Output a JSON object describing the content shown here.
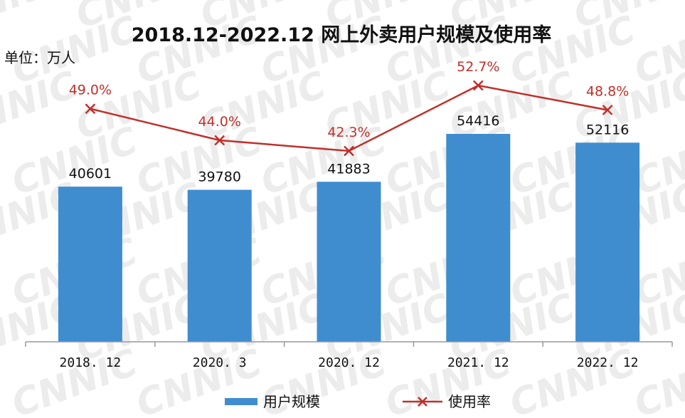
{
  "chart_data": {
    "type": "bar",
    "title": "2018.12-2022.12 网上外卖用户规模及使用率",
    "unit_label": "单位：万人",
    "categories": [
      "2018. 12",
      "2020. 3",
      "2020. 12",
      "2021. 12",
      "2022. 12"
    ],
    "series": [
      {
        "name": "用户规模",
        "type": "bar",
        "values": [
          40601,
          39780,
          41883,
          54416,
          52116
        ],
        "labels": [
          "40601",
          "39780",
          "41883",
          "54416",
          "52116"
        ],
        "color": "#3f8dcf"
      },
      {
        "name": "使用率",
        "type": "line",
        "marker": "x",
        "values": [
          49.0,
          44.0,
          42.3,
          52.7,
          48.8
        ],
        "labels": [
          "49.0%",
          "44.0%",
          "42.3%",
          "52.7%",
          "48.8%"
        ],
        "color": "#c0302b"
      }
    ],
    "ylim_bar": [
      0,
      75000
    ],
    "ylim_line": [
      0,
      60
    ],
    "grid": false,
    "legend_position": "bottom"
  },
  "watermark": "CNNIC",
  "colors": {
    "title": "#111111",
    "axis": "#999999",
    "watermark": "#ececec"
  }
}
